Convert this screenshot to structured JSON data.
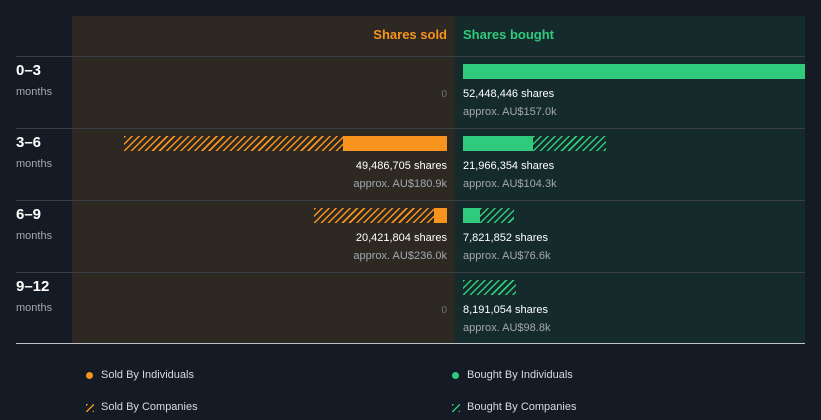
{
  "header": {
    "sold_label": "Shares sold",
    "bought_label": "Shares bought"
  },
  "rows": [
    {
      "period": "0–3",
      "unit": "months",
      "sold": {
        "zero_label": "0"
      },
      "bought": {
        "shares": "52,448,446 shares",
        "approx": "approx. AU$157.0k"
      }
    },
    {
      "period": "3–6",
      "unit": "months",
      "sold": {
        "shares": "49,486,705 shares",
        "approx": "approx. AU$180.9k"
      },
      "bought": {
        "shares": "21,966,354 shares",
        "approx": "approx. AU$104.3k"
      }
    },
    {
      "period": "6–9",
      "unit": "months",
      "sold": {
        "shares": "20,421,804 shares",
        "approx": "approx. AU$236.0k"
      },
      "bought": {
        "shares": "7,821,852 shares",
        "approx": "approx. AU$76.6k"
      }
    },
    {
      "period": "9–12",
      "unit": "months",
      "sold": {
        "zero_label": "0"
      },
      "bought": {
        "shares": "8,191,054 shares",
        "approx": "approx. AU$98.8k"
      }
    }
  ],
  "legend": {
    "sold_individuals": "Sold By Individuals",
    "bought_individuals": "Bought By Individuals",
    "sold_companies": "Sold By Companies",
    "bought_companies": "Bought By Companies"
  },
  "colors": {
    "sold": "#f7941d",
    "bought": "#2fca7c"
  },
  "chart_data": {
    "type": "bar",
    "categories": [
      "0–3",
      "3–6",
      "6–9",
      "9–12"
    ],
    "series": [
      {
        "name": "Sold By Individuals",
        "values": [
          0,
          16000000,
          2000000,
          0
        ]
      },
      {
        "name": "Sold By Companies",
        "values": [
          0,
          33486705,
          18421804,
          0
        ]
      },
      {
        "name": "Bought By Individuals",
        "values": [
          52448446,
          10800000,
          2600000,
          0
        ]
      },
      {
        "name": "Bought By Companies",
        "values": [
          0,
          11166354,
          5221852,
          8191054
        ]
      }
    ],
    "totals_sold": [
      0,
      49486705,
      20421804,
      0
    ],
    "totals_bought": [
      52448446,
      21966354,
      7821852,
      8191054
    ],
    "value_sold": [
      "",
      "AU$180.9k",
      "AU$236.0k",
      ""
    ],
    "value_bought": [
      "AU$157.0k",
      "AU$104.3k",
      "AU$76.6k",
      "AU$98.8k"
    ],
    "ylim": [
      0,
      52448446
    ]
  }
}
